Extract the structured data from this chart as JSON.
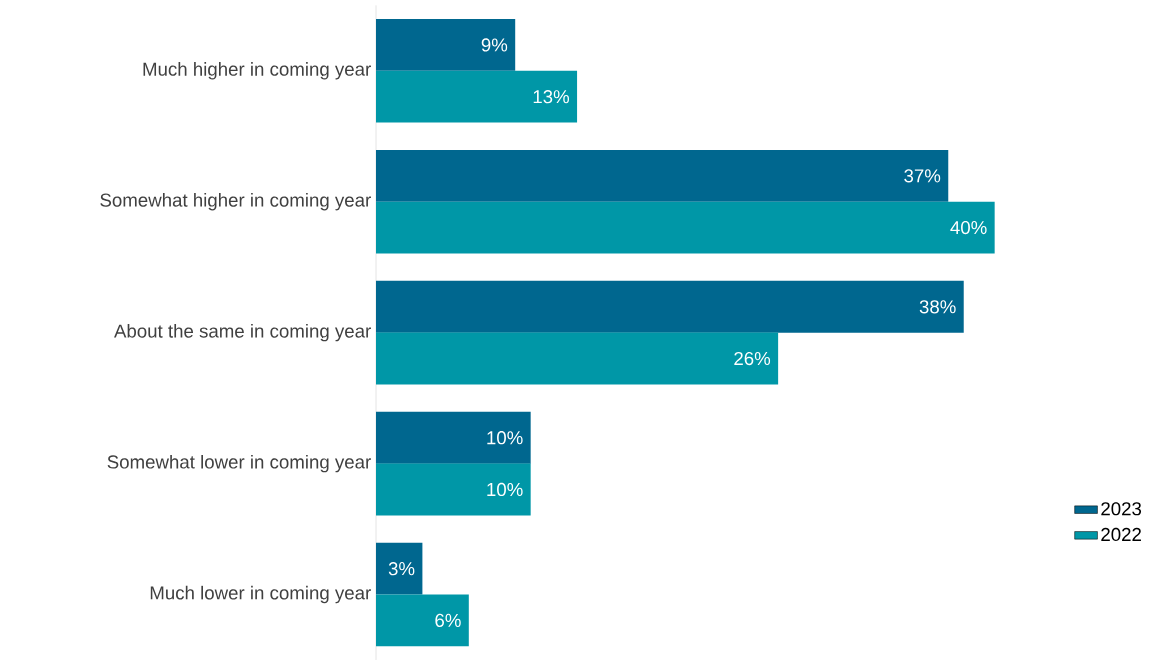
{
  "chart_data": {
    "type": "bar",
    "orientation": "horizontal",
    "legend": "bottom right",
    "categories": [
      "Much higher in coming year",
      "Somewhat higher in coming year",
      "About the same in coming year",
      "Somewhat lower in coming year",
      "Much lower in coming year"
    ],
    "series": [
      {
        "name": "2023",
        "color": "#00678f",
        "values": [
          9,
          37,
          38,
          10,
          3
        ],
        "value_labels": [
          "9%",
          "37%",
          "38%",
          "10%",
          "3%"
        ]
      },
      {
        "name": "2022",
        "color": "#0097a7",
        "values": [
          13,
          40,
          26,
          10,
          6
        ],
        "value_labels": [
          "13%",
          "40%",
          "26%",
          "10%",
          "6%"
        ]
      }
    ]
  }
}
